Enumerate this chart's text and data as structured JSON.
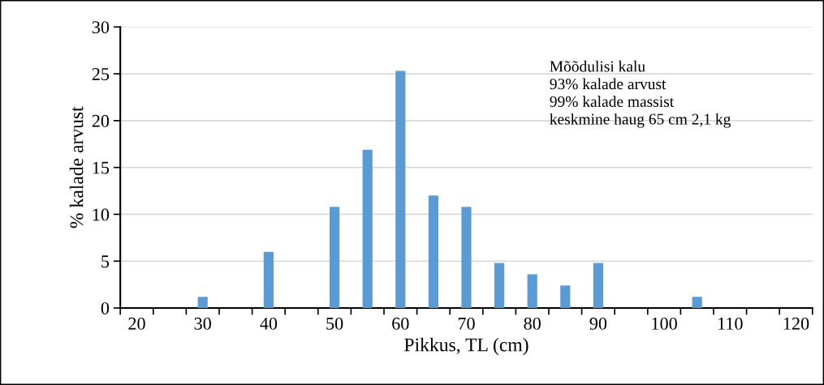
{
  "chart_data": {
    "type": "bar",
    "xlabel": "Pikkus, TL (cm)",
    "ylabel": "% kalade arvust",
    "x": [
      30,
      40,
      50,
      55,
      60,
      65,
      70,
      75,
      80,
      85,
      90,
      105
    ],
    "values": [
      1.2,
      6.0,
      10.8,
      16.9,
      25.3,
      12.0,
      10.8,
      4.8,
      3.6,
      2.4,
      4.8,
      1.2
    ],
    "color": "#5b9bd5",
    "xlim": [
      17.5,
      122.5
    ],
    "xticks": [
      {
        "value": 17.5,
        "label": null
      },
      20,
      {
        "value": 22.5,
        "label": null
      },
      {
        "value": 27.5,
        "label": null
      },
      30,
      {
        "value": 32.5,
        "label": null
      },
      {
        "value": 37.5,
        "label": null
      },
      40,
      {
        "value": 42.5,
        "label": null
      },
      {
        "value": 47.5,
        "label": null
      },
      50,
      {
        "value": 52.5,
        "label": null
      },
      {
        "value": 57.5,
        "label": null
      },
      60,
      {
        "value": 62.5,
        "label": null
      },
      {
        "value": 67.5,
        "label": null
      },
      70,
      {
        "value": 72.5,
        "label": null
      },
      {
        "value": 77.5,
        "label": null
      },
      80,
      {
        "value": 82.5,
        "label": null
      },
      {
        "value": 87.5,
        "label": null
      },
      90,
      {
        "value": 92.5,
        "label": null
      },
      {
        "value": 97.5,
        "label": null
      },
      100,
      {
        "value": 102.5,
        "label": null
      },
      {
        "value": 107.5,
        "label": null
      },
      110,
      {
        "value": 112.5,
        "label": null
      },
      {
        "value": 117.5,
        "label": null
      },
      120,
      {
        "value": 122.5,
        "label": null
      }
    ],
    "ylim": [
      0,
      30
    ],
    "yticks": [
      0,
      5,
      10,
      15,
      20,
      25,
      30
    ],
    "grid": "y",
    "annotations": [
      "Mõõdulisi kalu\n93% kalade arvust\n99% kalade massist\nkeskmine haug 65 cm 2,1 kg"
    ]
  }
}
